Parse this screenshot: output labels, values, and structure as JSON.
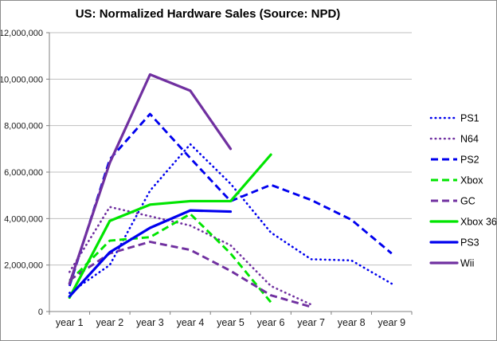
{
  "chart_data": {
    "type": "line",
    "title": "US: Normalized Hardware Sales (Source: NPD)",
    "xlabel": "",
    "ylabel": "",
    "categories": [
      "year 1",
      "year 2",
      "year 3",
      "year 4",
      "year 5",
      "year 6",
      "year 7",
      "year 8",
      "year 9"
    ],
    "ylim": [
      0,
      12000000
    ],
    "ytick_step": 2000000,
    "ytick_labels": [
      "0",
      "2,000,000",
      "4,000,000",
      "6,000,000",
      "8,000,000",
      "10,000,000",
      "12,000,000"
    ],
    "grid": "horizontal",
    "legend_position": "right",
    "colors": {
      "blue": "#0000EE",
      "purple": "#7030A0",
      "green": "#00E500",
      "grid": "#BFBFBF",
      "axis": "#808080"
    },
    "series": [
      {
        "name": "PS1",
        "color": "blue",
        "style": "dotted",
        "values": [
          800000,
          2000000,
          5200000,
          7200000,
          5500000,
          3400000,
          2250000,
          2200000,
          1200000
        ]
      },
      {
        "name": "N64",
        "color": "purple",
        "style": "dotted",
        "values": [
          1700000,
          4500000,
          4100000,
          3700000,
          2850000,
          1100000,
          300000
        ]
      },
      {
        "name": "PS2",
        "color": "blue",
        "style": "dashed",
        "values": [
          1100000,
          6550000,
          8500000,
          6600000,
          4750000,
          5450000,
          4800000,
          3950000,
          2500000
        ]
      },
      {
        "name": "Xbox",
        "color": "green",
        "style": "dashed",
        "values": [
          1300000,
          3050000,
          3200000,
          4200000,
          2500000,
          400000
        ]
      },
      {
        "name": "GC",
        "color": "purple",
        "style": "dashed",
        "values": [
          1350000,
          2500000,
          3000000,
          2650000,
          1750000,
          700000,
          200000
        ]
      },
      {
        "name": "Xbox 360",
        "color": "green",
        "style": "solid",
        "values": [
          600000,
          3900000,
          4600000,
          4750000,
          4750000,
          6750000
        ]
      },
      {
        "name": "PS3",
        "color": "blue",
        "style": "solid",
        "values": [
          650000,
          2550000,
          3600000,
          4350000,
          4300000
        ]
      },
      {
        "name": "Wii",
        "color": "purple",
        "style": "solid",
        "values": [
          1200000,
          6400000,
          10200000,
          9500000,
          7000000
        ]
      }
    ]
  }
}
